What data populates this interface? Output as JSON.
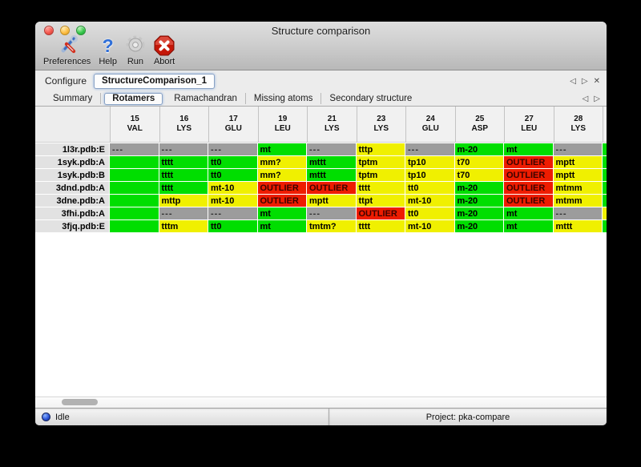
{
  "window": {
    "title": "Structure comparison"
  },
  "toolbar": {
    "items": [
      {
        "label": "Preferences",
        "icon": "tools-icon"
      },
      {
        "label": "Help",
        "icon": "question-icon"
      },
      {
        "label": "Run",
        "icon": "gear-icon"
      },
      {
        "label": "Abort",
        "icon": "abort-icon"
      }
    ]
  },
  "configure": {
    "label": "Configure",
    "value": "StructureComparison_1",
    "prev_glyph": "◁",
    "next_glyph": "▷",
    "close_glyph": "✕"
  },
  "tabs": {
    "items": [
      "Summary",
      "Rotamers",
      "Ramachandran",
      "Missing atoms",
      "Secondary structure"
    ],
    "selected": "Rotamers",
    "prev_glyph": "◁",
    "next_glyph": "▷"
  },
  "table": {
    "columns": [
      {
        "num": "15",
        "res": "VAL"
      },
      {
        "num": "16",
        "res": "LYS"
      },
      {
        "num": "17",
        "res": "GLU"
      },
      {
        "num": "19",
        "res": "LEU"
      },
      {
        "num": "21",
        "res": "LYS"
      },
      {
        "num": "23",
        "res": "LYS"
      },
      {
        "num": "24",
        "res": "GLU"
      },
      {
        "num": "25",
        "res": "ASP"
      },
      {
        "num": "27",
        "res": "LEU"
      },
      {
        "num": "28",
        "res": "LYS"
      }
    ],
    "rows": [
      {
        "label": "1l3r.pdb:E",
        "sliver": "green",
        "cells": [
          {
            "t": "---",
            "c": "gray"
          },
          {
            "t": "---",
            "c": "gray"
          },
          {
            "t": "---",
            "c": "gray"
          },
          {
            "t": "mt",
            "c": "green"
          },
          {
            "t": "---",
            "c": "gray"
          },
          {
            "t": "tttp",
            "c": "yellow"
          },
          {
            "t": "---",
            "c": "gray"
          },
          {
            "t": "m-20",
            "c": "green"
          },
          {
            "t": "mt",
            "c": "green"
          },
          {
            "t": "---",
            "c": "gray"
          }
        ]
      },
      {
        "label": "1syk.pdb:A",
        "sliver": "green",
        "cells": [
          {
            "t": "",
            "c": "green"
          },
          {
            "t": "tttt",
            "c": "green"
          },
          {
            "t": "tt0",
            "c": "green"
          },
          {
            "t": "mm?",
            "c": "yellow"
          },
          {
            "t": "mttt",
            "c": "green"
          },
          {
            "t": "tptm",
            "c": "yellow"
          },
          {
            "t": "tp10",
            "c": "yellow"
          },
          {
            "t": "t70",
            "c": "yellow"
          },
          {
            "t": "OUTLIER",
            "c": "red"
          },
          {
            "t": "mptt",
            "c": "yellow"
          }
        ]
      },
      {
        "label": "1syk.pdb:B",
        "sliver": "green",
        "cells": [
          {
            "t": "",
            "c": "green"
          },
          {
            "t": "tttt",
            "c": "green"
          },
          {
            "t": "tt0",
            "c": "green"
          },
          {
            "t": "mm?",
            "c": "yellow"
          },
          {
            "t": "mttt",
            "c": "green"
          },
          {
            "t": "tptm",
            "c": "yellow"
          },
          {
            "t": "tp10",
            "c": "yellow"
          },
          {
            "t": "t70",
            "c": "yellow"
          },
          {
            "t": "OUTLIER",
            "c": "red"
          },
          {
            "t": "mptt",
            "c": "yellow"
          }
        ]
      },
      {
        "label": "3dnd.pdb:A",
        "sliver": "green",
        "cells": [
          {
            "t": "",
            "c": "green"
          },
          {
            "t": "tttt",
            "c": "green"
          },
          {
            "t": "mt-10",
            "c": "yellow"
          },
          {
            "t": "OUTLIER",
            "c": "red"
          },
          {
            "t": "OUTLIER",
            "c": "red"
          },
          {
            "t": "tttt",
            "c": "yellow"
          },
          {
            "t": "tt0",
            "c": "yellow"
          },
          {
            "t": "m-20",
            "c": "green"
          },
          {
            "t": "OUTLIER",
            "c": "red"
          },
          {
            "t": "mtmm",
            "c": "yellow"
          }
        ]
      },
      {
        "label": "3dne.pdb:A",
        "sliver": "green",
        "cells": [
          {
            "t": "",
            "c": "green"
          },
          {
            "t": "mttp",
            "c": "yellow"
          },
          {
            "t": "mt-10",
            "c": "yellow"
          },
          {
            "t": "OUTLIER",
            "c": "red"
          },
          {
            "t": "mptt",
            "c": "yellow"
          },
          {
            "t": "ttpt",
            "c": "yellow"
          },
          {
            "t": "mt-10",
            "c": "yellow"
          },
          {
            "t": "m-20",
            "c": "green"
          },
          {
            "t": "OUTLIER",
            "c": "red"
          },
          {
            "t": "mtmm",
            "c": "yellow"
          }
        ]
      },
      {
        "label": "3fhi.pdb:A",
        "sliver": "yellow",
        "cells": [
          {
            "t": "",
            "c": "green"
          },
          {
            "t": "---",
            "c": "gray"
          },
          {
            "t": "---",
            "c": "gray"
          },
          {
            "t": "mt",
            "c": "green"
          },
          {
            "t": "---",
            "c": "gray"
          },
          {
            "t": "OUTLIER",
            "c": "red"
          },
          {
            "t": "tt0",
            "c": "yellow"
          },
          {
            "t": "m-20",
            "c": "green"
          },
          {
            "t": "mt",
            "c": "green"
          },
          {
            "t": "---",
            "c": "gray"
          }
        ]
      },
      {
        "label": "3fjq.pdb:E",
        "sliver": "green",
        "cells": [
          {
            "t": "",
            "c": "green"
          },
          {
            "t": "tttm",
            "c": "yellow"
          },
          {
            "t": "tt0",
            "c": "green"
          },
          {
            "t": "mt",
            "c": "green"
          },
          {
            "t": "tmtm?",
            "c": "yellow"
          },
          {
            "t": "tttt",
            "c": "yellow"
          },
          {
            "t": "mt-10",
            "c": "yellow"
          },
          {
            "t": "m-20",
            "c": "green"
          },
          {
            "t": "mt",
            "c": "green"
          },
          {
            "t": "mttt",
            "c": "yellow"
          }
        ]
      }
    ]
  },
  "statusbar": {
    "status": "Idle",
    "project": "Project: pka-compare"
  },
  "colors": {
    "green": "#00DE00",
    "yellow": "#F0F000",
    "red": "#EE1C00",
    "gray": "#9C9C9C"
  }
}
